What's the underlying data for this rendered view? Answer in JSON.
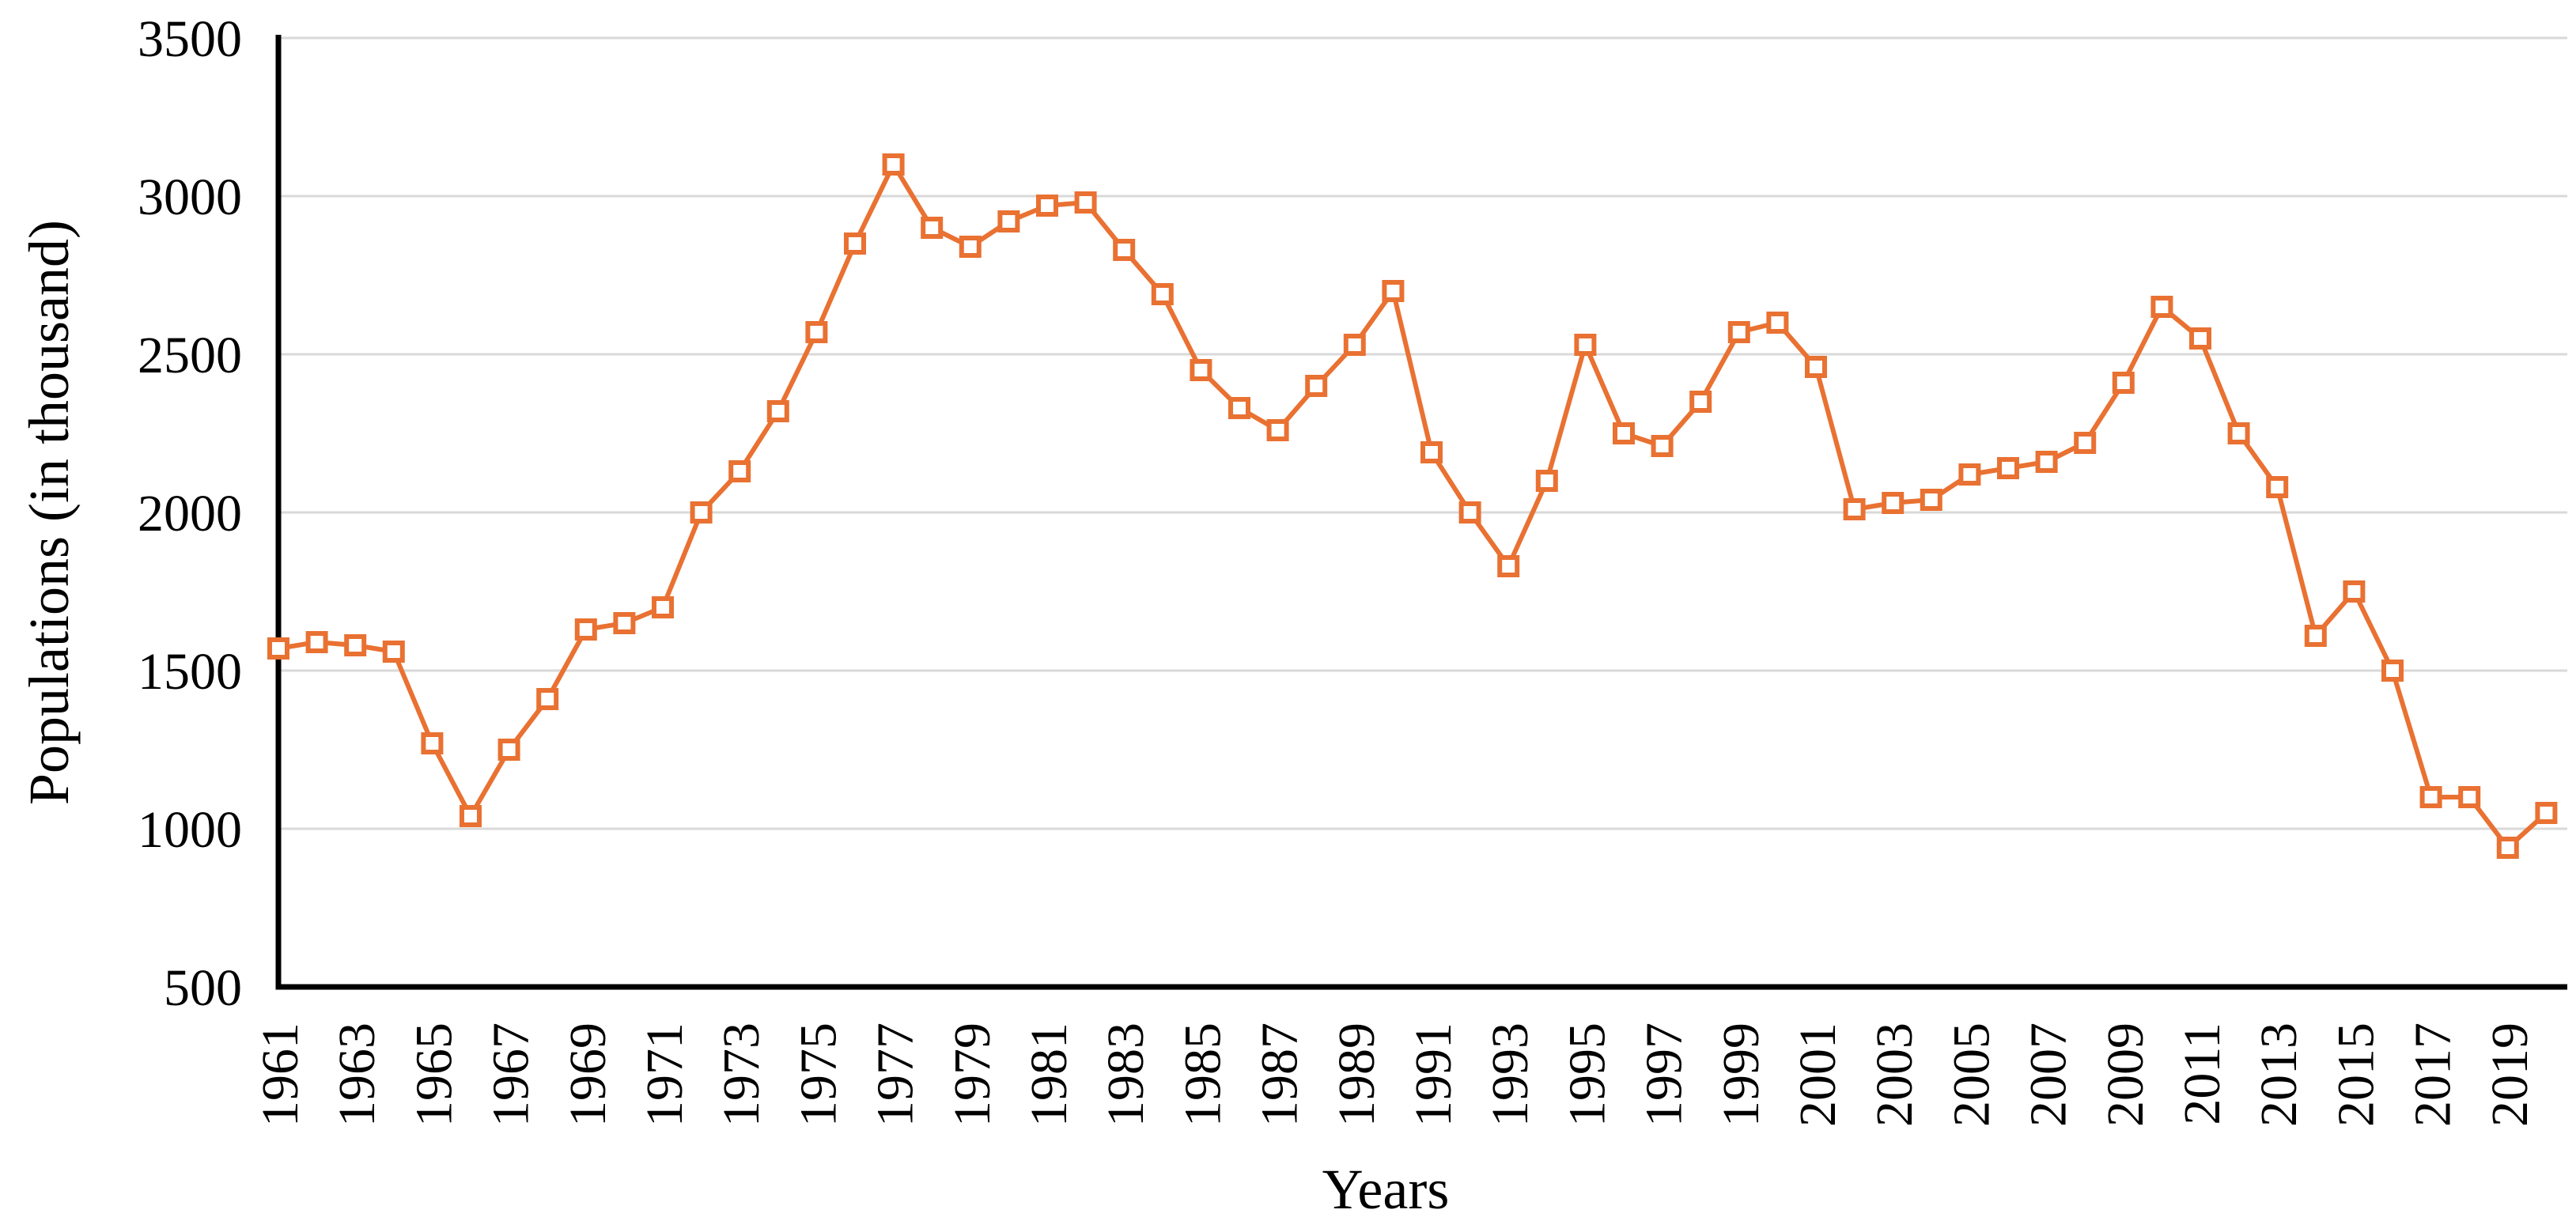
{
  "chart_data": {
    "type": "line",
    "title": "",
    "xlabel": "Years",
    "ylabel": "Populations (in thousand)",
    "series": [
      {
        "name": "Populations (in thousand)",
        "x": [
          1961,
          1962,
          1963,
          1964,
          1965,
          1966,
          1967,
          1968,
          1969,
          1970,
          1971,
          1972,
          1973,
          1974,
          1975,
          1976,
          1977,
          1978,
          1979,
          1980,
          1981,
          1982,
          1983,
          1984,
          1985,
          1986,
          1987,
          1988,
          1989,
          1990,
          1991,
          1992,
          1993,
          1994,
          1995,
          1996,
          1997,
          1998,
          1999,
          2000,
          2001,
          2002,
          2003,
          2004,
          2005,
          2006,
          2007,
          2008,
          2009,
          2010,
          2011,
          2012,
          2013,
          2014,
          2015,
          2016,
          2017,
          2018,
          2019,
          2020
        ],
        "values": [
          1570,
          1590,
          1580,
          1560,
          1270,
          1040,
          1250,
          1410,
          1630,
          1650,
          1700,
          2000,
          2130,
          2320,
          2570,
          2850,
          3100,
          2900,
          2840,
          2920,
          2970,
          2980,
          2830,
          2690,
          2450,
          2330,
          2260,
          2400,
          2530,
          2700,
          2190,
          2000,
          1830,
          2100,
          2530,
          2250,
          2210,
          2350,
          2570,
          2600,
          2460,
          2010,
          2030,
          2040,
          2120,
          2140,
          2160,
          2220,
          2410,
          2650,
          2550,
          2250,
          2080,
          1610,
          1750,
          1500,
          1100,
          1100,
          940,
          1050
        ]
      }
    ],
    "ylim": [
      500,
      3500
    ],
    "yticks": [
      500,
      1000,
      1500,
      2000,
      2500,
      3000,
      3500
    ],
    "xticks": [
      1961,
      1963,
      1965,
      1967,
      1969,
      1971,
      1973,
      1975,
      1977,
      1979,
      1981,
      1983,
      1985,
      1987,
      1989,
      1991,
      1993,
      1995,
      1997,
      1999,
      2001,
      2003,
      2005,
      2007,
      2009,
      2011,
      2013,
      2015,
      2017,
      2019
    ],
    "grid": "horizontal",
    "legend": "none",
    "marker": "open-square",
    "line_color": "#E97132",
    "marker_fill": "#FFFFFF",
    "gridline_color": "#D9D9D9",
    "axis_color": "#000000",
    "label_color": "#000000"
  }
}
